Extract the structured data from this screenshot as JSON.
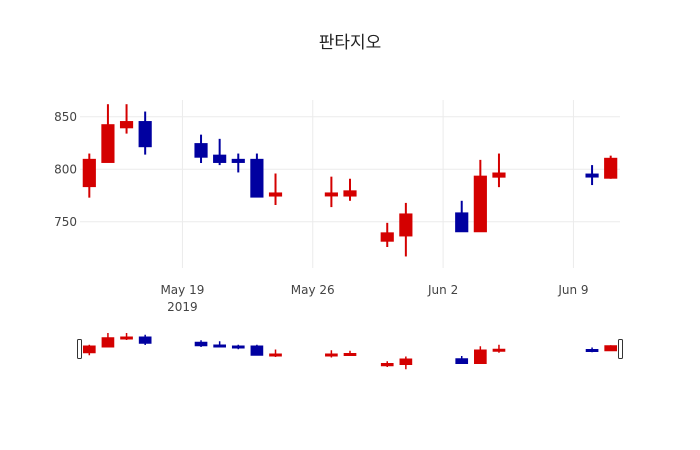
{
  "chart_data": {
    "type": "candlestick",
    "title": "판타지오",
    "xlabel": "",
    "ylabel": "",
    "ylim": [
      706,
      866
    ],
    "yticks": [
      750,
      800,
      850
    ],
    "xticks": [
      {
        "date": "2019-05-19",
        "label": "May 19",
        "sublabel": "2019"
      },
      {
        "date": "2019-05-26",
        "label": "May 26",
        "sublabel": ""
      },
      {
        "date": "2019-06-02",
        "label": "Jun 2",
        "sublabel": ""
      },
      {
        "date": "2019-06-09",
        "label": "Jun 9",
        "sublabel": ""
      }
    ],
    "xrange": [
      "2019-05-13T12:00",
      "2019-06-11T12:00"
    ],
    "grid": true,
    "rangeslider": true,
    "increasing_color": "#d40000",
    "decreasing_color": "#0000a0",
    "candles": [
      {
        "date": "2019-05-14",
        "open": 784,
        "high": 815,
        "low": 773,
        "close": 809
      },
      {
        "date": "2019-05-15",
        "open": 807,
        "high": 862,
        "low": 807,
        "close": 842
      },
      {
        "date": "2019-05-16",
        "open": 840,
        "high": 862,
        "low": 834,
        "close": 845
      },
      {
        "date": "2019-05-17",
        "open": 845,
        "high": 855,
        "low": 814,
        "close": 822
      },
      {
        "date": "2019-05-20",
        "open": 824,
        "high": 833,
        "low": 806,
        "close": 812
      },
      {
        "date": "2019-05-21",
        "open": 813,
        "high": 829,
        "low": 804,
        "close": 807
      },
      {
        "date": "2019-05-22",
        "open": 809,
        "high": 815,
        "low": 797,
        "close": 807
      },
      {
        "date": "2019-05-23",
        "open": 809,
        "high": 815,
        "low": 774,
        "close": 774
      },
      {
        "date": "2019-05-24",
        "open": 775,
        "high": 796,
        "low": 766,
        "close": 777
      },
      {
        "date": "2019-05-27",
        "open": 776,
        "high": 793,
        "low": 764,
        "close": 777
      },
      {
        "date": "2019-05-28",
        "open": 775,
        "high": 791,
        "low": 770,
        "close": 779
      },
      {
        "date": "2019-05-30",
        "open": 732,
        "high": 749,
        "low": 726,
        "close": 739
      },
      {
        "date": "2019-05-31",
        "open": 737,
        "high": 768,
        "low": 717,
        "close": 757
      },
      {
        "date": "2019-06-03",
        "open": 758,
        "high": 770,
        "low": 741,
        "close": 741
      },
      {
        "date": "2019-06-04",
        "open": 741,
        "high": 809,
        "low": 741,
        "close": 793
      },
      {
        "date": "2019-06-05",
        "open": 793,
        "high": 815,
        "low": 783,
        "close": 796
      },
      {
        "date": "2019-06-10",
        "open": 795,
        "high": 804,
        "low": 785,
        "close": 794
      },
      {
        "date": "2019-06-11",
        "open": 792,
        "high": 813,
        "low": 791,
        "close": 810
      }
    ]
  }
}
